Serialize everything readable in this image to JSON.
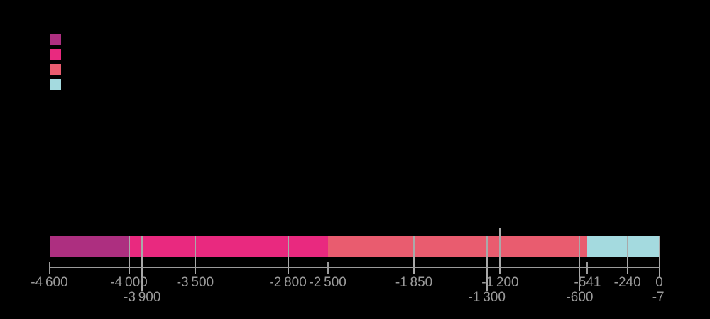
{
  "background_color": "#000000",
  "chart_data": {
    "type": "bar",
    "subtype": "horizontal-stacked-timeline",
    "title": "",
    "xlabel": "",
    "ylabel": "",
    "axis": {
      "min": -4600,
      "max": 0,
      "line_color": "#9B9B9B",
      "gridline_color": "#A9A9A9",
      "label_color": "#9B9B9B"
    },
    "legend": {
      "position": "top-left",
      "swatch_colors": [
        "#AD2F80",
        "#E9297F",
        "#E95C6F",
        "#A4DADF"
      ]
    },
    "segments": [
      {
        "from": -4600,
        "to": -4000,
        "color": "#AD2F80"
      },
      {
        "from": -4000,
        "to": -2500,
        "color": "#E9297F"
      },
      {
        "from": -2500,
        "to": -541,
        "color": "#E95C6F"
      },
      {
        "from": -541,
        "to": 0,
        "color": "#A4DADF"
      }
    ],
    "ticks": [
      {
        "value": -4600,
        "label": "-4 600",
        "row": 1,
        "line": "axis-only"
      },
      {
        "value": -4000,
        "label": "-4 000",
        "row": 1,
        "line": "through-bar"
      },
      {
        "value": -3900,
        "label": "-3 900",
        "row": 2,
        "line": "through-bar"
      },
      {
        "value": -3500,
        "label": "-3 500",
        "row": 1,
        "line": "through-bar"
      },
      {
        "value": -2800,
        "label": "-2 800",
        "row": 1,
        "line": "through-bar"
      },
      {
        "value": -2500,
        "label": "-2 500",
        "row": 1,
        "line": "axis-only"
      },
      {
        "value": -1850,
        "label": "-1 850",
        "row": 1,
        "line": "through-bar"
      },
      {
        "value": -1300,
        "label": "-1 300",
        "row": 2,
        "line": "through-bar"
      },
      {
        "value": -1200,
        "label": "-1 200",
        "row": 1,
        "line": "above-bar"
      },
      {
        "value": -600,
        "label": "-600",
        "row": 2,
        "line": "through-bar"
      },
      {
        "value": -541,
        "label": "-541",
        "row": 1,
        "line": "axis-only"
      },
      {
        "value": -240,
        "label": "-240",
        "row": 1,
        "line": "through-bar"
      },
      {
        "value": -7,
        "label": "-7",
        "row": 2,
        "line": "none"
      },
      {
        "value": 0,
        "label": "0",
        "row": 1,
        "line": "through-bar"
      }
    ]
  }
}
